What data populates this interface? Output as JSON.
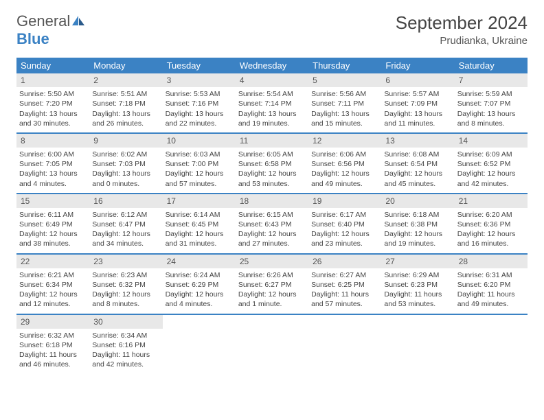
{
  "logo": {
    "text1": "General",
    "text2": "Blue"
  },
  "title": "September 2024",
  "location": "Prudianka, Ukraine",
  "colors": {
    "accent": "#3b82c4",
    "header_bg": "#3b82c4",
    "daynum_bg": "#e8e8e8",
    "text": "#444444"
  },
  "day_headers": [
    "Sunday",
    "Monday",
    "Tuesday",
    "Wednesday",
    "Thursday",
    "Friday",
    "Saturday"
  ],
  "weeks": [
    [
      {
        "num": "1",
        "sunrise": "Sunrise: 5:50 AM",
        "sunset": "Sunset: 7:20 PM",
        "daylight1": "Daylight: 13 hours",
        "daylight2": "and 30 minutes."
      },
      {
        "num": "2",
        "sunrise": "Sunrise: 5:51 AM",
        "sunset": "Sunset: 7:18 PM",
        "daylight1": "Daylight: 13 hours",
        "daylight2": "and 26 minutes."
      },
      {
        "num": "3",
        "sunrise": "Sunrise: 5:53 AM",
        "sunset": "Sunset: 7:16 PM",
        "daylight1": "Daylight: 13 hours",
        "daylight2": "and 22 minutes."
      },
      {
        "num": "4",
        "sunrise": "Sunrise: 5:54 AM",
        "sunset": "Sunset: 7:14 PM",
        "daylight1": "Daylight: 13 hours",
        "daylight2": "and 19 minutes."
      },
      {
        "num": "5",
        "sunrise": "Sunrise: 5:56 AM",
        "sunset": "Sunset: 7:11 PM",
        "daylight1": "Daylight: 13 hours",
        "daylight2": "and 15 minutes."
      },
      {
        "num": "6",
        "sunrise": "Sunrise: 5:57 AM",
        "sunset": "Sunset: 7:09 PM",
        "daylight1": "Daylight: 13 hours",
        "daylight2": "and 11 minutes."
      },
      {
        "num": "7",
        "sunrise": "Sunrise: 5:59 AM",
        "sunset": "Sunset: 7:07 PM",
        "daylight1": "Daylight: 13 hours",
        "daylight2": "and 8 minutes."
      }
    ],
    [
      {
        "num": "8",
        "sunrise": "Sunrise: 6:00 AM",
        "sunset": "Sunset: 7:05 PM",
        "daylight1": "Daylight: 13 hours",
        "daylight2": "and 4 minutes."
      },
      {
        "num": "9",
        "sunrise": "Sunrise: 6:02 AM",
        "sunset": "Sunset: 7:03 PM",
        "daylight1": "Daylight: 13 hours",
        "daylight2": "and 0 minutes."
      },
      {
        "num": "10",
        "sunrise": "Sunrise: 6:03 AM",
        "sunset": "Sunset: 7:00 PM",
        "daylight1": "Daylight: 12 hours",
        "daylight2": "and 57 minutes."
      },
      {
        "num": "11",
        "sunrise": "Sunrise: 6:05 AM",
        "sunset": "Sunset: 6:58 PM",
        "daylight1": "Daylight: 12 hours",
        "daylight2": "and 53 minutes."
      },
      {
        "num": "12",
        "sunrise": "Sunrise: 6:06 AM",
        "sunset": "Sunset: 6:56 PM",
        "daylight1": "Daylight: 12 hours",
        "daylight2": "and 49 minutes."
      },
      {
        "num": "13",
        "sunrise": "Sunrise: 6:08 AM",
        "sunset": "Sunset: 6:54 PM",
        "daylight1": "Daylight: 12 hours",
        "daylight2": "and 45 minutes."
      },
      {
        "num": "14",
        "sunrise": "Sunrise: 6:09 AM",
        "sunset": "Sunset: 6:52 PM",
        "daylight1": "Daylight: 12 hours",
        "daylight2": "and 42 minutes."
      }
    ],
    [
      {
        "num": "15",
        "sunrise": "Sunrise: 6:11 AM",
        "sunset": "Sunset: 6:49 PM",
        "daylight1": "Daylight: 12 hours",
        "daylight2": "and 38 minutes."
      },
      {
        "num": "16",
        "sunrise": "Sunrise: 6:12 AM",
        "sunset": "Sunset: 6:47 PM",
        "daylight1": "Daylight: 12 hours",
        "daylight2": "and 34 minutes."
      },
      {
        "num": "17",
        "sunrise": "Sunrise: 6:14 AM",
        "sunset": "Sunset: 6:45 PM",
        "daylight1": "Daylight: 12 hours",
        "daylight2": "and 31 minutes."
      },
      {
        "num": "18",
        "sunrise": "Sunrise: 6:15 AM",
        "sunset": "Sunset: 6:43 PM",
        "daylight1": "Daylight: 12 hours",
        "daylight2": "and 27 minutes."
      },
      {
        "num": "19",
        "sunrise": "Sunrise: 6:17 AM",
        "sunset": "Sunset: 6:40 PM",
        "daylight1": "Daylight: 12 hours",
        "daylight2": "and 23 minutes."
      },
      {
        "num": "20",
        "sunrise": "Sunrise: 6:18 AM",
        "sunset": "Sunset: 6:38 PM",
        "daylight1": "Daylight: 12 hours",
        "daylight2": "and 19 minutes."
      },
      {
        "num": "21",
        "sunrise": "Sunrise: 6:20 AM",
        "sunset": "Sunset: 6:36 PM",
        "daylight1": "Daylight: 12 hours",
        "daylight2": "and 16 minutes."
      }
    ],
    [
      {
        "num": "22",
        "sunrise": "Sunrise: 6:21 AM",
        "sunset": "Sunset: 6:34 PM",
        "daylight1": "Daylight: 12 hours",
        "daylight2": "and 12 minutes."
      },
      {
        "num": "23",
        "sunrise": "Sunrise: 6:23 AM",
        "sunset": "Sunset: 6:32 PM",
        "daylight1": "Daylight: 12 hours",
        "daylight2": "and 8 minutes."
      },
      {
        "num": "24",
        "sunrise": "Sunrise: 6:24 AM",
        "sunset": "Sunset: 6:29 PM",
        "daylight1": "Daylight: 12 hours",
        "daylight2": "and 4 minutes."
      },
      {
        "num": "25",
        "sunrise": "Sunrise: 6:26 AM",
        "sunset": "Sunset: 6:27 PM",
        "daylight1": "Daylight: 12 hours",
        "daylight2": "and 1 minute."
      },
      {
        "num": "26",
        "sunrise": "Sunrise: 6:27 AM",
        "sunset": "Sunset: 6:25 PM",
        "daylight1": "Daylight: 11 hours",
        "daylight2": "and 57 minutes."
      },
      {
        "num": "27",
        "sunrise": "Sunrise: 6:29 AM",
        "sunset": "Sunset: 6:23 PM",
        "daylight1": "Daylight: 11 hours",
        "daylight2": "and 53 minutes."
      },
      {
        "num": "28",
        "sunrise": "Sunrise: 6:31 AM",
        "sunset": "Sunset: 6:20 PM",
        "daylight1": "Daylight: 11 hours",
        "daylight2": "and 49 minutes."
      }
    ],
    [
      {
        "num": "29",
        "sunrise": "Sunrise: 6:32 AM",
        "sunset": "Sunset: 6:18 PM",
        "daylight1": "Daylight: 11 hours",
        "daylight2": "and 46 minutes."
      },
      {
        "num": "30",
        "sunrise": "Sunrise: 6:34 AM",
        "sunset": "Sunset: 6:16 PM",
        "daylight1": "Daylight: 11 hours",
        "daylight2": "and 42 minutes."
      },
      null,
      null,
      null,
      null,
      null
    ]
  ]
}
